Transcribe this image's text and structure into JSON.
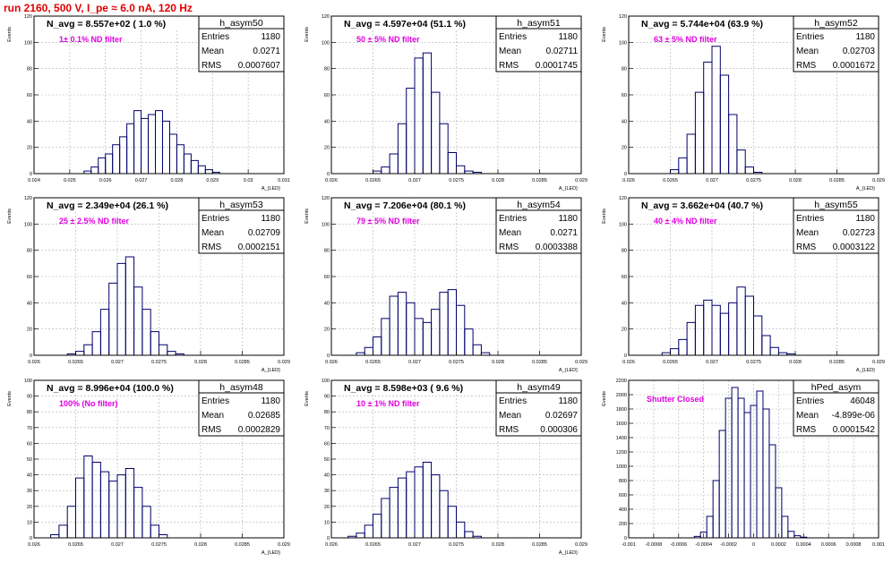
{
  "page": {
    "title": "run 2160,   500 V, I_pe ≈ 6.0 nA, 120 Hz"
  },
  "chart_data": [
    {
      "type": "histogram",
      "hist_name": "h_asym50",
      "entries": "1180",
      "mean": "0.0271",
      "rms": "0.0007607",
      "navg": "N_avg = 8.557e+02 ( 1.0 %)",
      "note": "1± 0.1% ND filter",
      "ylabel": "Events",
      "xlabel": "A_{LED}",
      "xlim": [
        0.024,
        0.031
      ],
      "ylim": [
        0,
        120
      ],
      "xticks": [
        "0.024",
        "0.025",
        "0.026",
        "0.027",
        "0.028",
        "0.029",
        "0.03",
        "0.031"
      ],
      "yticks": [
        "0",
        "20",
        "40",
        "60",
        "80",
        "100",
        "120"
      ],
      "x": [
        0.0255,
        0.0257,
        0.0259,
        0.0261,
        0.0263,
        0.0265,
        0.0267,
        0.0269,
        0.0271,
        0.0273,
        0.0275,
        0.0277,
        0.0279,
        0.0281,
        0.0283,
        0.0285,
        0.0287,
        0.0289,
        0.0291
      ],
      "y": [
        2,
        5,
        12,
        15,
        22,
        28,
        38,
        48,
        42,
        45,
        48,
        40,
        30,
        22,
        15,
        10,
        6,
        3,
        1
      ]
    },
    {
      "type": "histogram",
      "hist_name": "h_asym51",
      "entries": "1180",
      "mean": "0.02711",
      "rms": "0.0001745",
      "navg": "N_avg = 4.597e+04 (51.1 %)",
      "note": "50 ± 5% ND filter",
      "ylabel": "Events",
      "xlabel": "A_{LED}",
      "xlim": [
        0.026,
        0.029
      ],
      "ylim": [
        0,
        120
      ],
      "xticks": [
        "0.026",
        "0.0265",
        "0.027",
        "0.0275",
        "0.028",
        "0.0285",
        "0.029"
      ],
      "yticks": [
        "0",
        "20",
        "40",
        "60",
        "80",
        "100",
        "120"
      ],
      "x": [
        0.02655,
        0.02665,
        0.02675,
        0.02685,
        0.02695,
        0.02705,
        0.02715,
        0.02725,
        0.02735,
        0.02745,
        0.02755,
        0.02765,
        0.02775
      ],
      "y": [
        2,
        5,
        15,
        38,
        65,
        88,
        92,
        62,
        38,
        16,
        6,
        2,
        1
      ]
    },
    {
      "type": "histogram",
      "hist_name": "h_asym52",
      "entries": "1180",
      "mean": "0.02703",
      "rms": "0.0001672",
      "navg": "N_avg = 5.744e+04 (63.9 %)",
      "note": "63 ± 5% ND filter",
      "ylabel": "Events",
      "xlabel": "A_{LED}",
      "xlim": [
        0.026,
        0.029
      ],
      "ylim": [
        0,
        120
      ],
      "xticks": [
        "0.026",
        "0.0265",
        "0.027",
        "0.0275",
        "0.028",
        "0.0285",
        "0.029"
      ],
      "yticks": [
        "0",
        "20",
        "40",
        "60",
        "80",
        "100",
        "120"
      ],
      "x": [
        0.02655,
        0.02665,
        0.02675,
        0.02685,
        0.02695,
        0.02705,
        0.02715,
        0.02725,
        0.02735,
        0.02745,
        0.02755
      ],
      "y": [
        3,
        12,
        30,
        62,
        85,
        97,
        75,
        45,
        18,
        5,
        1
      ]
    },
    {
      "type": "histogram",
      "hist_name": "h_asym53",
      "entries": "1180",
      "mean": "0.02709",
      "rms": "0.0002151",
      "navg": "N_avg = 2.349e+04 (26.1 %)",
      "note": "25 ± 2.5% ND filter",
      "ylabel": "Events",
      "xlabel": "A_{LED}",
      "xlim": [
        0.026,
        0.029
      ],
      "ylim": [
        0,
        120
      ],
      "xticks": [
        "0.026",
        "0.0265",
        "0.027",
        "0.0275",
        "0.028",
        "0.0285",
        "0.029"
      ],
      "yticks": [
        "0",
        "20",
        "40",
        "60",
        "80",
        "100",
        "120"
      ],
      "x": [
        0.02645,
        0.02655,
        0.02665,
        0.02675,
        0.02685,
        0.02695,
        0.02705,
        0.02715,
        0.02725,
        0.02735,
        0.02745,
        0.02755,
        0.02765,
        0.02775
      ],
      "y": [
        1,
        3,
        8,
        18,
        35,
        55,
        70,
        75,
        52,
        35,
        18,
        8,
        3,
        1
      ]
    },
    {
      "type": "histogram",
      "hist_name": "h_asym54",
      "entries": "1180",
      "mean": "0.0271",
      "rms": "0.0003388",
      "navg": "N_avg = 7.206e+04 (80.1 %)",
      "note": "79 ± 5% ND filter",
      "ylabel": "Events",
      "xlabel": "A_{LED}",
      "xlim": [
        0.026,
        0.029
      ],
      "ylim": [
        0,
        120
      ],
      "xticks": [
        "0.026",
        "0.0265",
        "0.027",
        "0.0275",
        "0.028",
        "0.0285",
        "0.029"
      ],
      "yticks": [
        "0",
        "20",
        "40",
        "60",
        "80",
        "100",
        "120"
      ],
      "x": [
        0.02635,
        0.02645,
        0.02655,
        0.02665,
        0.02675,
        0.02685,
        0.02695,
        0.02705,
        0.02715,
        0.02725,
        0.02735,
        0.02745,
        0.02755,
        0.02765,
        0.02775,
        0.02785
      ],
      "y": [
        2,
        6,
        14,
        28,
        45,
        48,
        40,
        28,
        25,
        35,
        48,
        50,
        38,
        20,
        8,
        2
      ]
    },
    {
      "type": "histogram",
      "hist_name": "h_asym55",
      "entries": "1180",
      "mean": "0.02723",
      "rms": "0.0003122",
      "navg": "N_avg = 3.662e+04 (40.7 %)",
      "note": "40 ± 4% ND filter",
      "ylabel": "Events",
      "xlabel": "A_{LED}",
      "xlim": [
        0.026,
        0.029
      ],
      "ylim": [
        0,
        120
      ],
      "xticks": [
        "0.026",
        "0.0265",
        "0.027",
        "0.0275",
        "0.028",
        "0.0285",
        "0.029"
      ],
      "yticks": [
        "0",
        "20",
        "40",
        "60",
        "80",
        "100",
        "120"
      ],
      "x": [
        0.02645,
        0.02655,
        0.02665,
        0.02675,
        0.02685,
        0.02695,
        0.02705,
        0.02715,
        0.02725,
        0.02735,
        0.02745,
        0.02755,
        0.02765,
        0.02775,
        0.02785,
        0.02795
      ],
      "y": [
        2,
        5,
        12,
        25,
        38,
        42,
        38,
        32,
        40,
        52,
        45,
        30,
        15,
        6,
        2,
        1
      ]
    },
    {
      "type": "histogram",
      "hist_name": "h_asym48",
      "entries": "1180",
      "mean": "0.02685",
      "rms": "0.0002829",
      "navg": "N_avg = 8.996e+04 (100.0 %)",
      "note": "100% (No filter)",
      "ylabel": "Events",
      "xlabel": "A_{LED}",
      "xlim": [
        0.026,
        0.029
      ],
      "ylim": [
        0,
        100
      ],
      "xticks": [
        "0.026",
        "0.0265",
        "0.027",
        "0.0275",
        "0.028",
        "0.0285",
        "0.029"
      ],
      "yticks": [
        "0",
        "10",
        "20",
        "30",
        "40",
        "50",
        "60",
        "70",
        "80",
        "90",
        "100"
      ],
      "x": [
        0.02625,
        0.02635,
        0.02645,
        0.02655,
        0.02665,
        0.02675,
        0.02685,
        0.02695,
        0.02705,
        0.02715,
        0.02725,
        0.02735,
        0.02745,
        0.02755
      ],
      "y": [
        2,
        8,
        20,
        38,
        52,
        48,
        42,
        36,
        40,
        44,
        32,
        20,
        8,
        2
      ]
    },
    {
      "type": "histogram",
      "hist_name": "h_asym49",
      "entries": "1180",
      "mean": "0.02697",
      "rms": "0.000306",
      "navg": "N_avg = 8.598e+03 ( 9.6 %)",
      "note": "10 ± 1% ND filter",
      "ylabel": "Events",
      "xlabel": "A_{LED}",
      "xlim": [
        0.026,
        0.029
      ],
      "ylim": [
        0,
        100
      ],
      "xticks": [
        "0.026",
        "0.0265",
        "0.027",
        "0.0275",
        "0.028",
        "0.0285",
        "0.029"
      ],
      "yticks": [
        "0",
        "10",
        "20",
        "30",
        "40",
        "50",
        "60",
        "70",
        "80",
        "90",
        "100"
      ],
      "x": [
        0.02625,
        0.02635,
        0.02645,
        0.02655,
        0.02665,
        0.02675,
        0.02685,
        0.02695,
        0.02705,
        0.02715,
        0.02725,
        0.02735,
        0.02745,
        0.02755,
        0.02765,
        0.02775
      ],
      "y": [
        1,
        3,
        8,
        15,
        25,
        32,
        38,
        42,
        45,
        48,
        40,
        30,
        20,
        10,
        4,
        1
      ]
    },
    {
      "type": "histogram",
      "hist_name": "hPed_asym",
      "entries": "46048",
      "mean": "-4.899e-06",
      "rms": "0.0001542",
      "navg": "",
      "note": "Shutter Closed",
      "ylabel": "Events",
      "xlabel": "",
      "xlim": [
        -0.001,
        0.001
      ],
      "ylim": [
        0,
        2200
      ],
      "xticks": [
        "-0.001",
        "-0.0008",
        "-0.0006",
        "-0.0004",
        "-0.0002",
        "0",
        "0.0002",
        "0.0004",
        "0.0006",
        "0.0008",
        "0.001"
      ],
      "yticks": [
        "0",
        "200",
        "400",
        "600",
        "800",
        "1000",
        "1200",
        "1400",
        "1600",
        "1800",
        "2000",
        "2200"
      ],
      "x": [
        -0.00045,
        -0.0004,
        -0.00035,
        -0.0003,
        -0.00025,
        -0.0002,
        -0.00015,
        -0.0001,
        -5e-05,
        0.0,
        5e-05,
        0.0001,
        0.00015,
        0.0002,
        0.00025,
        0.0003,
        0.00035,
        0.0004
      ],
      "y": [
        20,
        80,
        300,
        800,
        1500,
        1950,
        2100,
        1950,
        1750,
        1850,
        2050,
        1800,
        1300,
        700,
        300,
        90,
        30,
        10
      ]
    }
  ]
}
